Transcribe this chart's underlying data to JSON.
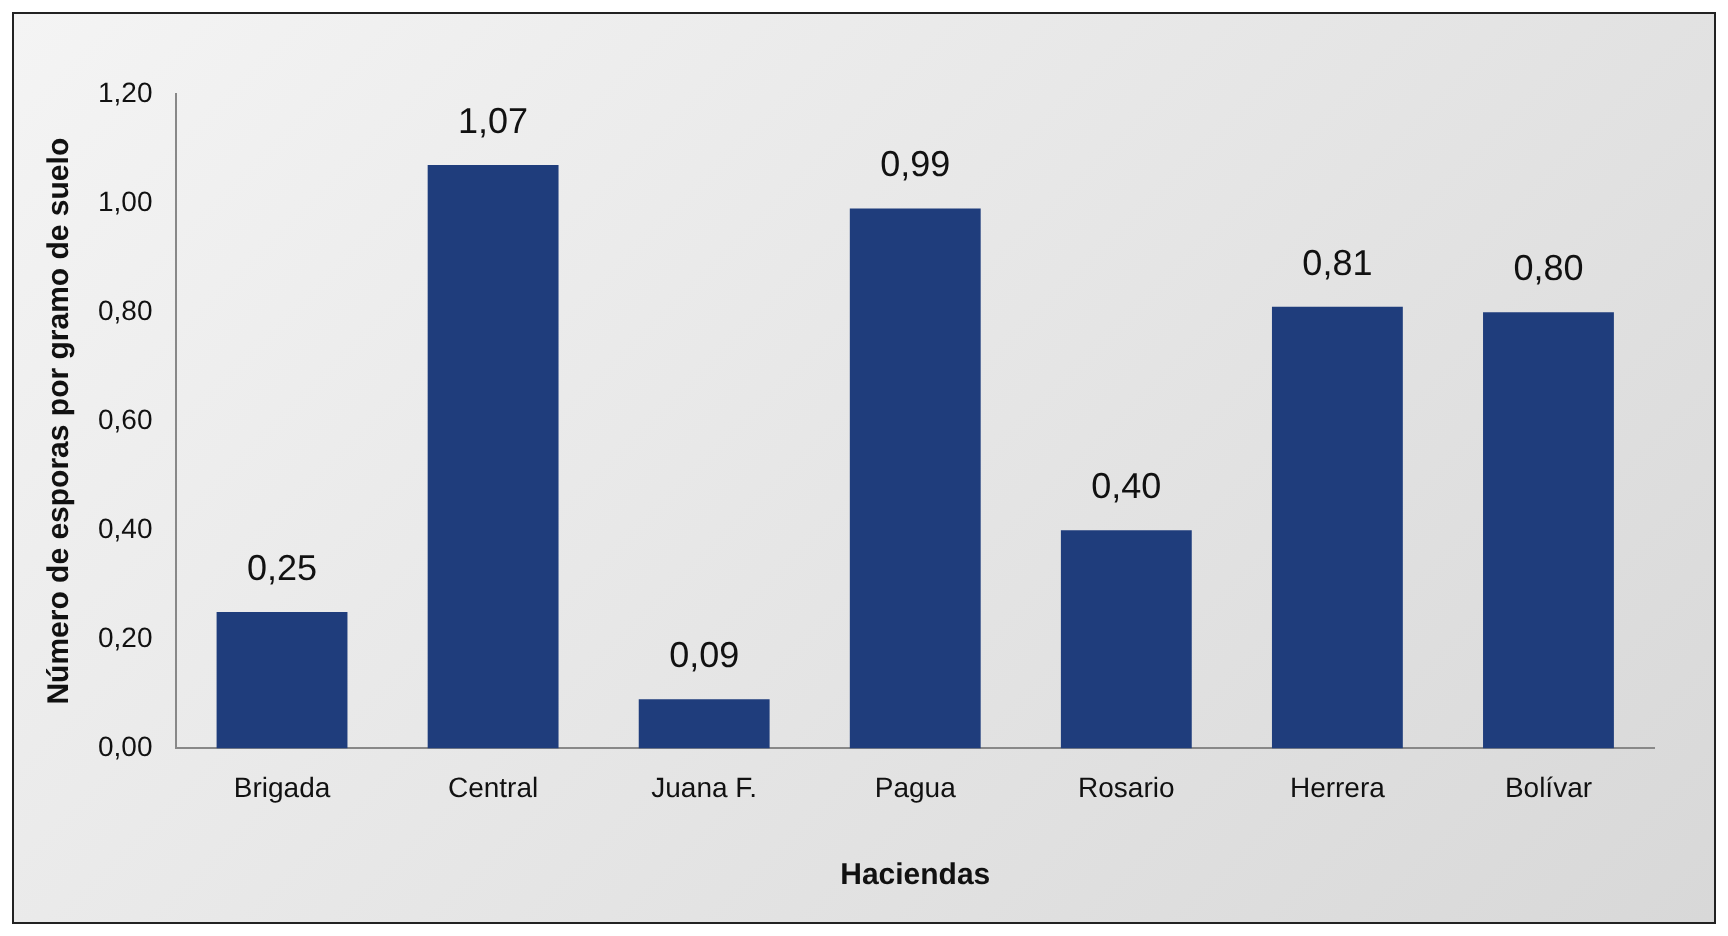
{
  "chart_data": {
    "type": "bar",
    "xlabel": "Haciendas",
    "ylabel": "Número de esporas por gramo de suelo",
    "categories": [
      "Brigada",
      "Central",
      "Juana F.",
      "Pagua",
      "Rosario",
      "Herrera",
      "Bolívar"
    ],
    "values": [
      0.25,
      1.07,
      0.09,
      0.99,
      0.4,
      0.81,
      0.8
    ],
    "value_labels": [
      "0,25",
      "1,07",
      "0,09",
      "0,99",
      "0,40",
      "0,81",
      "0,80"
    ],
    "color": "#1f3d7c",
    "ylim": [
      0,
      1.2
    ],
    "yticks": [
      {
        "value": 0,
        "label": "0,00"
      },
      {
        "value": 0.2,
        "label": "0,20"
      },
      {
        "value": 0.4,
        "label": "0,40"
      },
      {
        "value": 0.6,
        "label": "0,60"
      },
      {
        "value": 0.8,
        "label": "0,80"
      },
      {
        "value": 1,
        "label": "1,00"
      },
      {
        "value": 1.2,
        "label": "1,20"
      }
    ],
    "grid": false,
    "legend": false
  }
}
